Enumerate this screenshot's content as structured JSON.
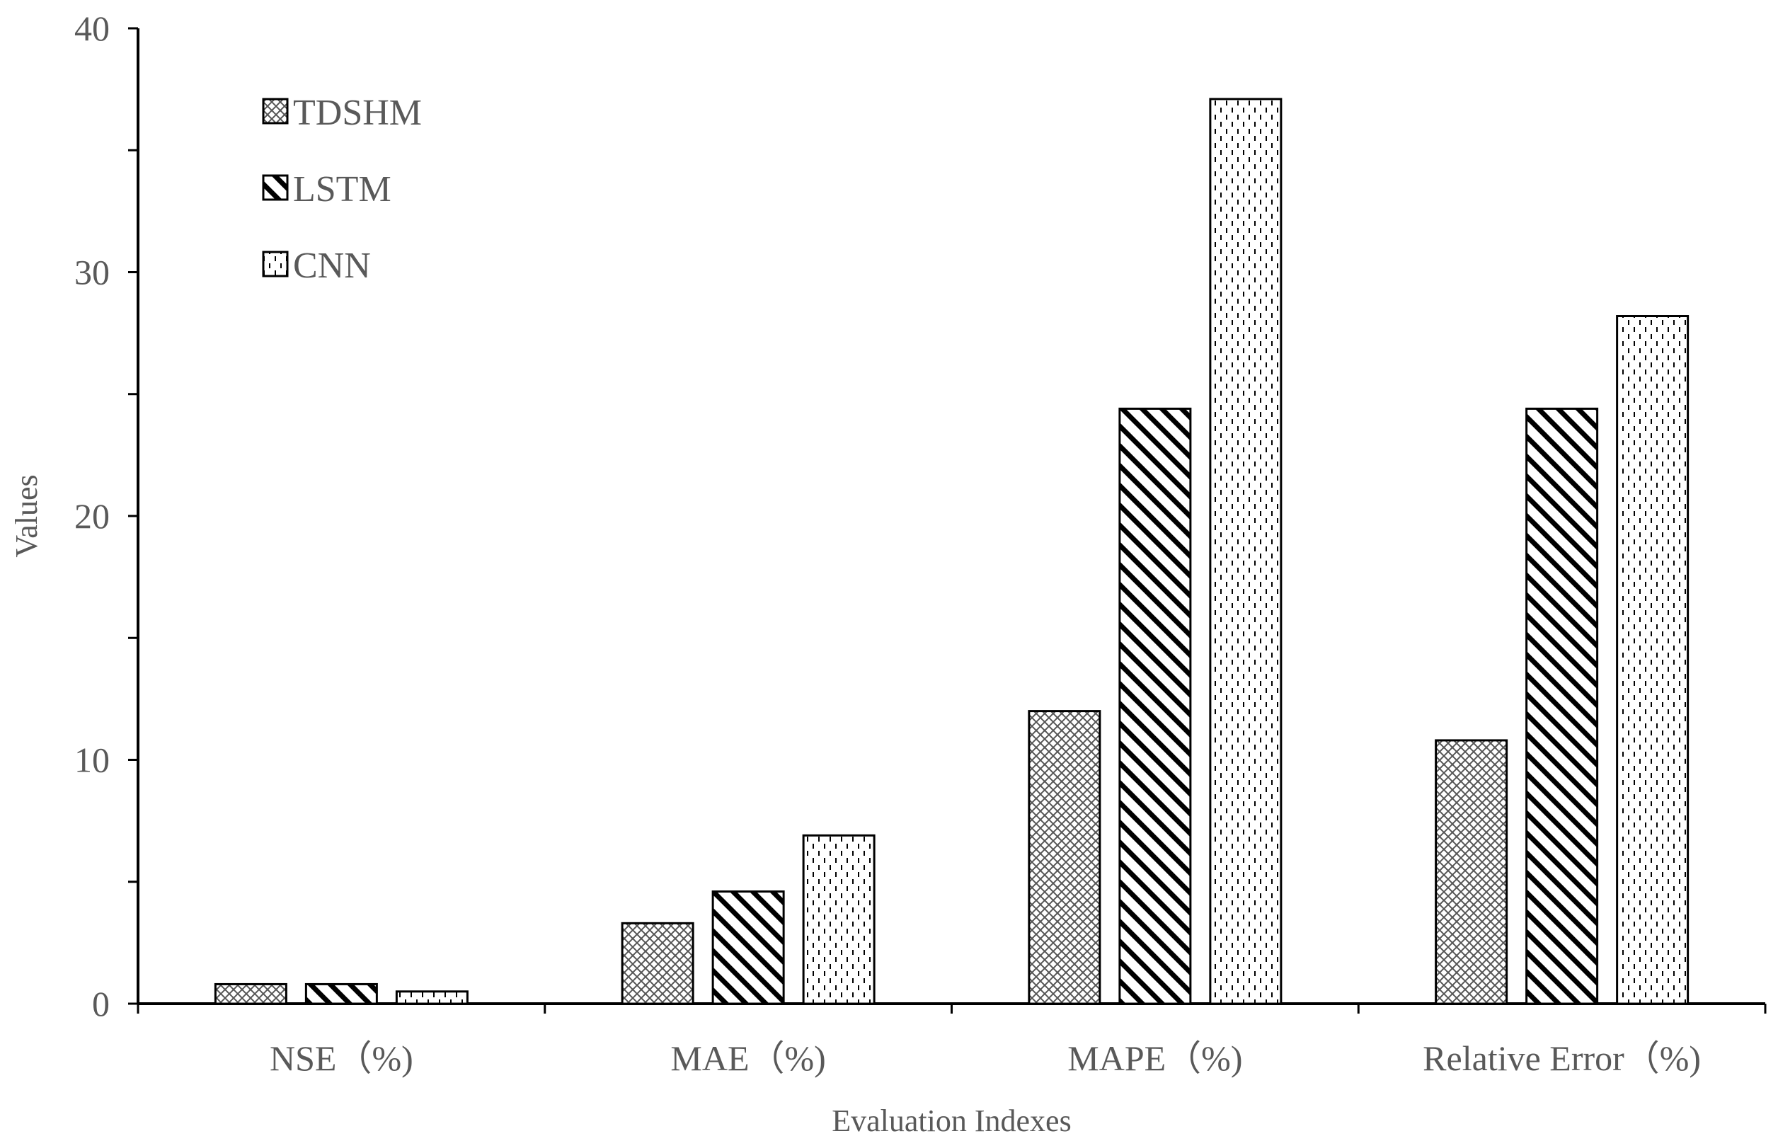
{
  "chart_data": {
    "type": "bar",
    "title": "",
    "xlabel": "Evaluation Indexes",
    "ylabel": "Values",
    "categories": [
      "NSE（%)",
      "MAE（%)",
      "MAPE（%)",
      "Relative Error（%)"
    ],
    "series": [
      {
        "name": "TDSHM",
        "pattern": "crosshatch",
        "values": [
          0.8,
          3.3,
          12.0,
          10.8
        ]
      },
      {
        "name": "LSTM",
        "pattern": "diagonal",
        "values": [
          0.8,
          4.6,
          24.4,
          24.4
        ]
      },
      {
        "name": "CNN",
        "pattern": "dotted",
        "values": [
          0.5,
          6.9,
          37.1,
          28.2
        ]
      }
    ],
    "ylim": [
      0,
      40
    ],
    "y_major_ticks": [
      0,
      10,
      20,
      30,
      40
    ],
    "y_minor_step": 5,
    "grid": false,
    "legend_position": "top-left",
    "colors": {
      "bar_stroke": "#000000",
      "bar_fill": "#ffffff",
      "text": "#595959",
      "axis": "#000000"
    }
  }
}
